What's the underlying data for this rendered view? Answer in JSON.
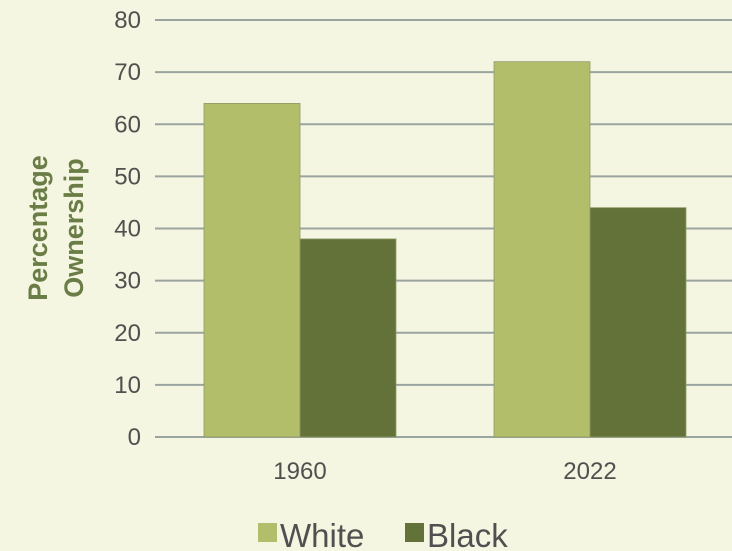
{
  "chart_data": {
    "type": "bar",
    "categories": [
      "1960",
      "2022"
    ],
    "series": [
      {
        "name": "White",
        "values": [
          64,
          72
        ],
        "color": "#b3be6b"
      },
      {
        "name": "Black",
        "values": [
          38,
          44
        ],
        "color": "#637238"
      }
    ],
    "ylabel_lines": [
      "Percentage",
      "Ownership"
    ],
    "ylim": [
      0,
      80
    ],
    "yticks": [
      0,
      10,
      20,
      30,
      40,
      50,
      60,
      70,
      80
    ],
    "grid": true,
    "legend_position": "bottom",
    "colors": {
      "background": "#f5f6e1",
      "gridline": "#9aa4a0",
      "text": "#505050",
      "ylabel": "#6a7d46"
    }
  }
}
